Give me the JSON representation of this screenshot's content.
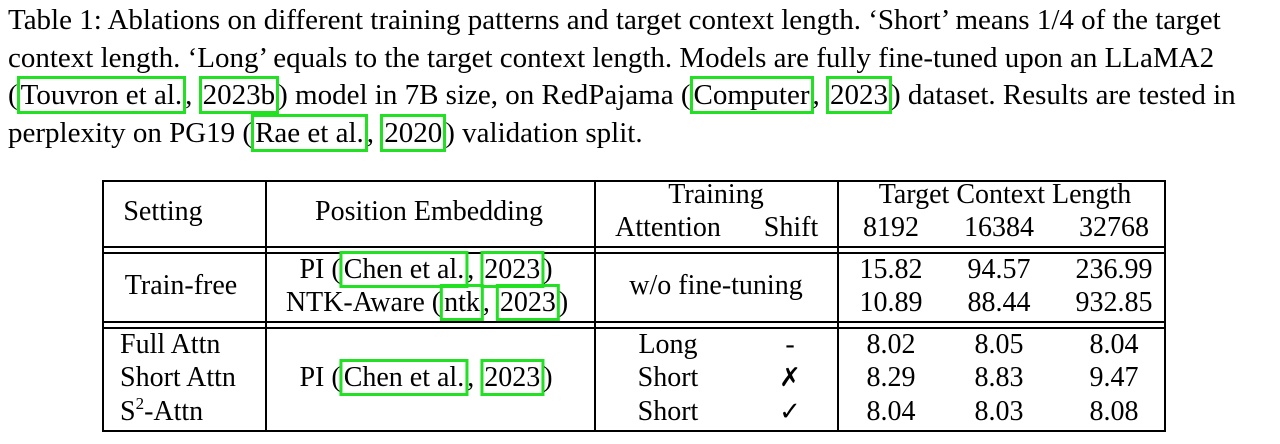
{
  "caption": {
    "t1": "Table 1: Ablations on different training patterns and target context length. ‘Short’ means 1/4 of the target context length. ‘Long’ equals to the target context length. Models are fully fine-tuned upon an LLaMA2 (",
    "cite_touvron_a": "Touvron et al.",
    "sep1": ", ",
    "cite_touvron_b": "2023b",
    "t2": ") model in 7B size, on RedPajama (",
    "cite_computer_a": "Computer",
    "sep2": ", ",
    "cite_computer_b": "2023",
    "t3": ") dataset. Results are tested in perplexity on PG19 (",
    "cite_rae_a": "Rae et al.",
    "sep3": ", ",
    "cite_rae_b": "2020",
    "t4": ") validation split."
  },
  "header": {
    "setting": "Setting",
    "position_embedding": "Position Embedding",
    "training": "Training",
    "attention": "Attention",
    "shift": "Shift",
    "target_context_length": "Target Context Length",
    "lengths": [
      "8192",
      "16384",
      "32768"
    ]
  },
  "train_free": {
    "setting": "Train-free",
    "pe1_a": "PI (",
    "pe1_cite_a": "Chen et al.",
    "pe1_sep": ", ",
    "pe1_cite_b": "2023",
    "pe1_b": ")",
    "pe2_a": "NTK-Aware (",
    "pe2_cite_a": "ntk",
    "pe2_sep": ", ",
    "pe2_cite_b": "2023",
    "pe2_b": ")",
    "training": "w/o fine-tuning",
    "rows": [
      [
        "15.82",
        "94.57",
        "236.99"
      ],
      [
        "10.89",
        "88.44",
        "932.85"
      ]
    ]
  },
  "fine_tuned": {
    "pe_a": "PI (",
    "pe_cite_a": "Chen et al.",
    "pe_sep": ", ",
    "pe_cite_b": "2023",
    "pe_b": ")",
    "rows": [
      {
        "setting": "Full Attn",
        "setting_sup": "",
        "setting_tail": "",
        "attention": "Long",
        "shift": "-",
        "values": [
          "8.02",
          "8.05",
          "8.04"
        ]
      },
      {
        "setting": "Short Attn",
        "setting_sup": "",
        "setting_tail": "",
        "attention": "Short",
        "shift": "✗",
        "values": [
          "8.29",
          "8.83",
          "9.47"
        ]
      },
      {
        "setting": "S",
        "setting_sup": "2",
        "setting_tail": "-Attn",
        "attention": "Short",
        "shift": "✓",
        "values": [
          "8.04",
          "8.03",
          "8.08"
        ]
      }
    ]
  }
}
